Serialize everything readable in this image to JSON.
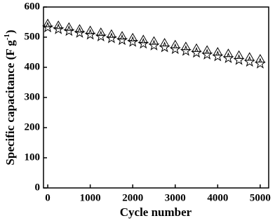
{
  "chart_data": {
    "type": "scatter",
    "xlabel": "Cycle number",
    "ylabel": "Specific capacitance (F g",
    "ylabel_sup": "-1",
    "ylabel_close": ")",
    "x": [
      0,
      250,
      500,
      750,
      1000,
      1250,
      1500,
      1750,
      2000,
      2250,
      2500,
      2750,
      3000,
      3250,
      3500,
      3750,
      4000,
      4250,
      4500,
      4750,
      5000
    ],
    "series": [
      {
        "color": "#000000",
        "marker": "triangle",
        "values": [
          545,
          539,
          533,
          527,
          522,
          516,
          510,
          504,
          498,
          492,
          487,
          481,
          475,
          469,
          463,
          457,
          451,
          446,
          440,
          434,
          428
        ]
      },
      {
        "color": "#000000",
        "marker": "star",
        "values": [
          532,
          526,
          520,
          514,
          508,
          502,
          496,
          490,
          484,
          478,
          472,
          466,
          460,
          454,
          448,
          442,
          436,
          430,
          424,
          418,
          412
        ]
      }
    ],
    "xlim": [
      -100,
      5200
    ],
    "ylim": [
      0,
      600
    ],
    "xticks": [
      0,
      1000,
      2000,
      3000,
      4000,
      5000
    ],
    "yticks": [
      0,
      100,
      200,
      300,
      400,
      500,
      600
    ],
    "grid": false
  }
}
